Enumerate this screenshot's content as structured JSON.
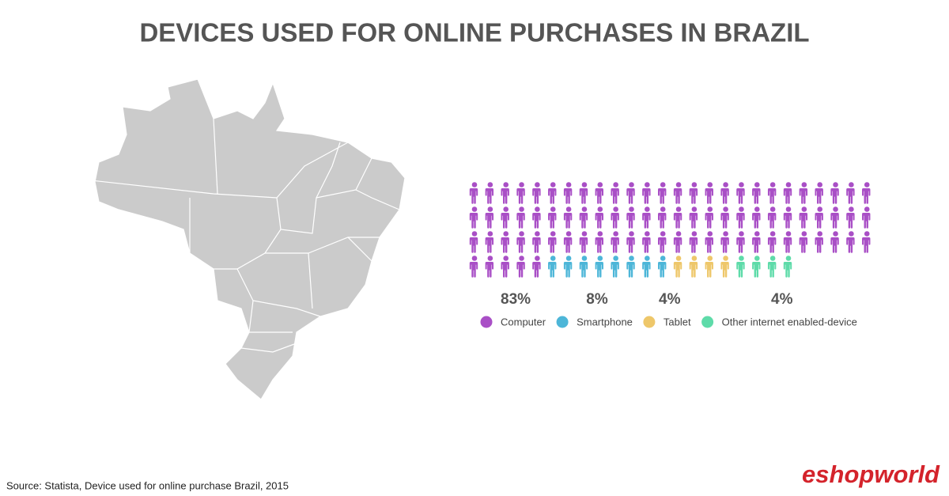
{
  "chart_data": {
    "type": "pictogram",
    "title": "DEVICES USED FOR ONLINE PURCHASES IN BRAZIL",
    "categories": [
      "Computer",
      "Smartphone",
      "Tablet",
      "Other internet enabled-device"
    ],
    "values": [
      83,
      8,
      4,
      4
    ],
    "value_labels": [
      "83%",
      "8%",
      "4%",
      "4%"
    ],
    "colors": [
      "#a94fc6",
      "#4db6d8",
      "#eec76a",
      "#5edba9"
    ]
  },
  "source": "Source: Statista, Device used for online purchase Brazil, 2015",
  "logo": "eshopworld"
}
